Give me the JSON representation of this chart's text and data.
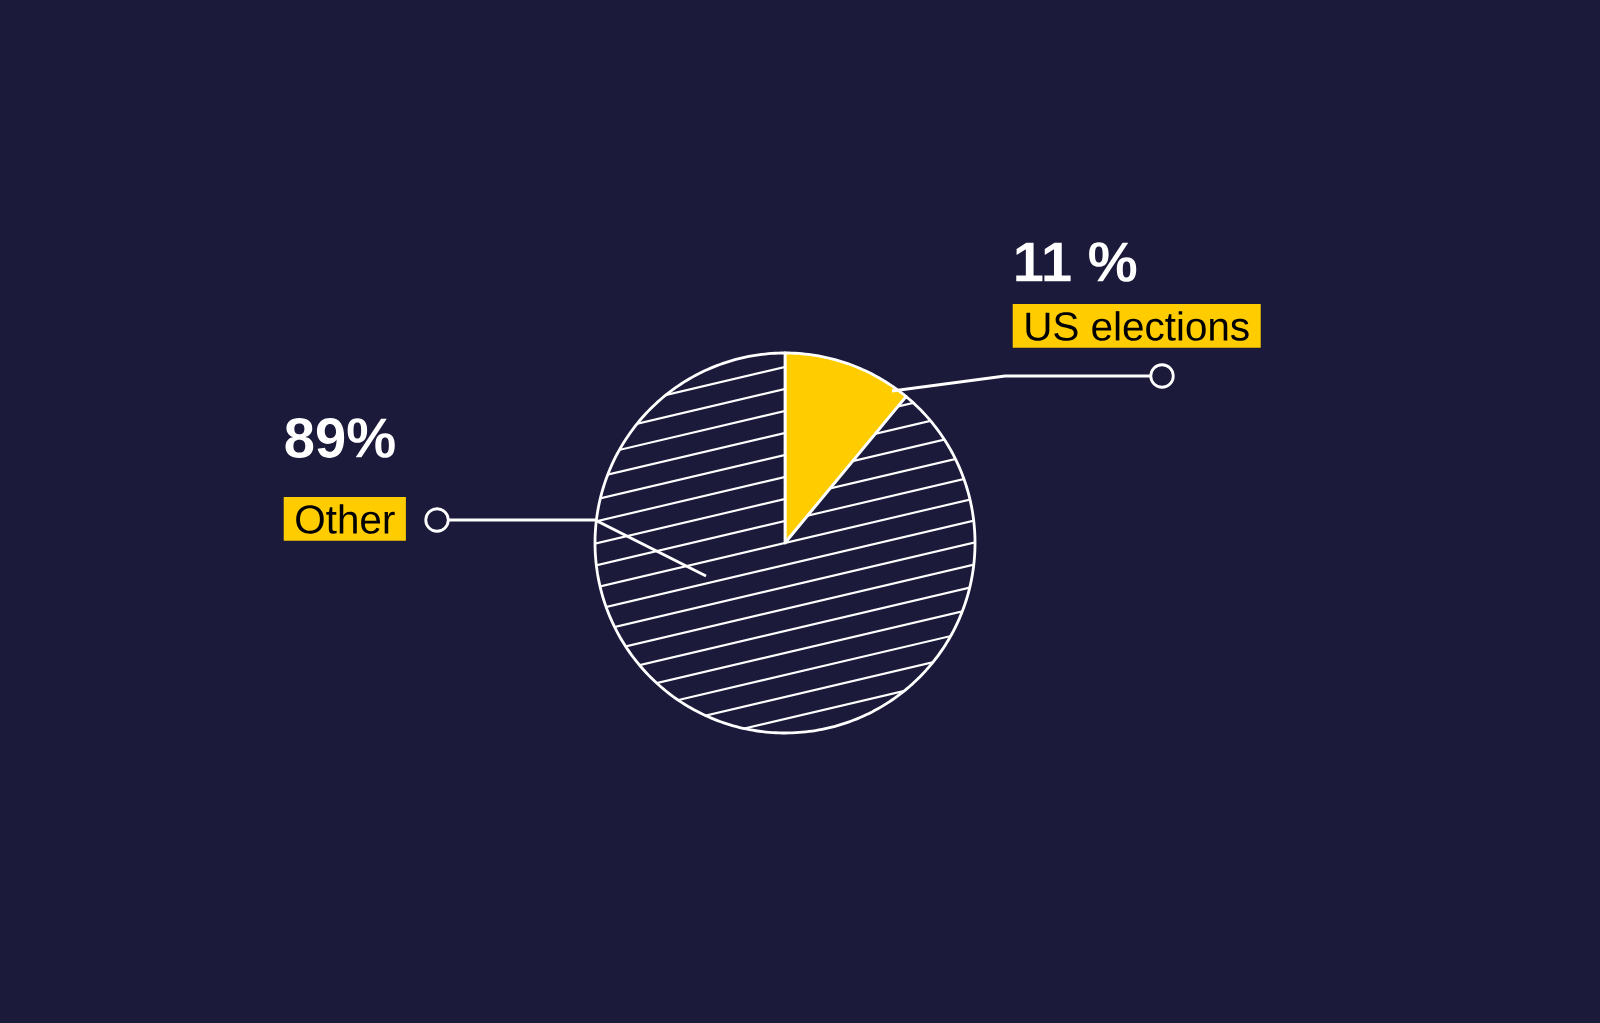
{
  "chart_data": {
    "type": "pie",
    "categories": [
      "US elections",
      "Other"
    ],
    "values": [
      11,
      89
    ],
    "value_labels": [
      "11 %",
      "89%"
    ],
    "colors": [
      "#ffcc00",
      "#1b1a3a"
    ]
  }
}
